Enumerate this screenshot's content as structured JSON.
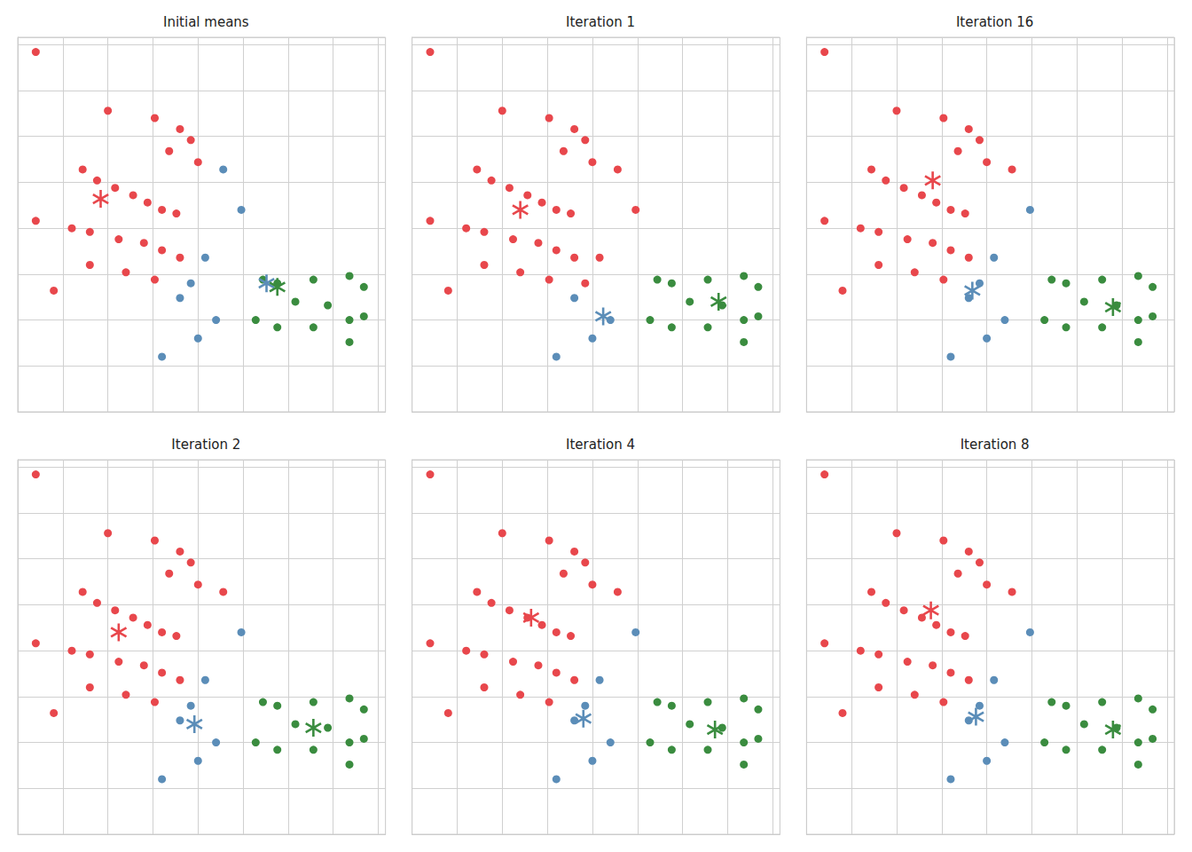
{
  "chart_data": [
    {
      "type": "scatter",
      "title": "Initial means",
      "xlim": [
        0.0,
        10.2
      ],
      "ylim": [
        0.0,
        10.2
      ],
      "xticks": [
        0,
        1.25,
        2.5,
        3.75,
        5,
        6.25,
        7.5,
        8.75,
        10
      ],
      "yticks": [
        0,
        1.25,
        2.5,
        3.75,
        5,
        6.25,
        7.5,
        8.75,
        10
      ],
      "grid": true,
      "tick_labels": false,
      "series": [
        {
          "color": "#E8474C",
          "marker": "circle",
          "x": [
            0.5,
            2.5,
            3.8,
            4.5,
            4.8,
            4.2,
            5.0,
            1.8,
            2.2,
            2.7,
            3.2,
            3.6,
            4.0,
            4.4,
            0.5,
            1.5,
            2.0,
            2.8,
            3.5,
            4.0,
            4.5,
            2.0,
            3.0,
            3.8,
            1.0
          ],
          "values": [
            9.8,
            8.2,
            8.0,
            7.7,
            7.4,
            7.1,
            6.8,
            6.6,
            6.3,
            6.1,
            5.9,
            5.7,
            5.5,
            5.4,
            5.2,
            5.0,
            4.9,
            4.7,
            4.6,
            4.4,
            4.2,
            4.0,
            3.8,
            3.6,
            3.3
          ]
        },
        {
          "color": "#5B8DB8",
          "marker": "circle",
          "x": [
            5.7,
            6.2,
            5.2,
            4.8,
            4.5,
            5.5,
            5.0,
            4.0
          ],
          "values": [
            6.6,
            5.5,
            4.2,
            3.5,
            3.1,
            2.5,
            2.0,
            1.5
          ]
        },
        {
          "color": "#3A8C3F",
          "marker": "circle",
          "x": [
            6.8,
            7.2,
            8.2,
            9.2,
            9.6,
            7.7,
            8.6,
            9.2,
            6.6,
            7.2,
            8.2,
            9.6,
            9.2
          ],
          "values": [
            3.6,
            3.5,
            3.6,
            3.7,
            3.4,
            3.0,
            2.9,
            2.5,
            2.5,
            2.3,
            2.3,
            2.6,
            1.9
          ]
        },
        {
          "color": "#E8474C",
          "marker": "asterisk",
          "x": [
            2.3
          ],
          "values": [
            5.8
          ]
        },
        {
          "color": "#5B8DB8",
          "marker": "asterisk",
          "x": [
            6.9
          ],
          "values": [
            3.5
          ]
        },
        {
          "color": "#3A8C3F",
          "marker": "asterisk",
          "x": [
            7.2
          ],
          "values": [
            3.4
          ]
        }
      ]
    },
    {
      "type": "scatter",
      "title": "Iteration 1",
      "xlim": [
        0.0,
        10.2
      ],
      "ylim": [
        0.0,
        10.2
      ],
      "xticks": [
        0,
        1.25,
        2.5,
        3.75,
        5,
        6.25,
        7.5,
        8.75,
        10
      ],
      "yticks": [
        0,
        1.25,
        2.5,
        3.75,
        5,
        6.25,
        7.5,
        8.75,
        10
      ],
      "grid": true,
      "tick_labels": false,
      "series": [
        {
          "color": "#E8474C",
          "marker": "circle",
          "x": [
            0.5,
            2.5,
            3.8,
            4.5,
            4.8,
            4.2,
            5.0,
            1.8,
            2.2,
            2.7,
            3.2,
            3.6,
            4.0,
            4.4,
            0.5,
            1.5,
            2.0,
            2.8,
            3.5,
            4.0,
            4.5,
            2.0,
            3.0,
            3.8,
            1.0,
            5.7,
            6.2,
            5.2,
            4.8
          ],
          "values": [
            9.8,
            8.2,
            8.0,
            7.7,
            7.4,
            7.1,
            6.8,
            6.6,
            6.3,
            6.1,
            5.9,
            5.7,
            5.5,
            5.4,
            5.2,
            5.0,
            4.9,
            4.7,
            4.6,
            4.4,
            4.2,
            4.0,
            3.8,
            3.6,
            3.3,
            6.6,
            5.5,
            4.2,
            3.5
          ]
        },
        {
          "color": "#5B8DB8",
          "marker": "circle",
          "x": [
            4.5,
            5.5,
            5.0,
            4.0
          ],
          "values": [
            3.1,
            2.5,
            2.0,
            1.5
          ]
        },
        {
          "color": "#3A8C3F",
          "marker": "circle",
          "x": [
            6.8,
            7.2,
            8.2,
            9.2,
            9.6,
            7.7,
            8.6,
            9.2,
            6.6,
            7.2,
            8.2,
            9.6,
            9.2
          ],
          "values": [
            3.6,
            3.5,
            3.6,
            3.7,
            3.4,
            3.0,
            2.9,
            2.5,
            2.5,
            2.3,
            2.3,
            2.6,
            1.9
          ]
        },
        {
          "color": "#E8474C",
          "marker": "asterisk",
          "x": [
            3.0
          ],
          "values": [
            5.5
          ]
        },
        {
          "color": "#5B8DB8",
          "marker": "asterisk",
          "x": [
            5.3
          ],
          "values": [
            2.6
          ]
        },
        {
          "color": "#3A8C3F",
          "marker": "asterisk",
          "x": [
            8.5
          ],
          "values": [
            3.0
          ]
        }
      ]
    },
    {
      "type": "scatter",
      "title": "Iteration 16",
      "xlim": [
        0.0,
        10.2
      ],
      "ylim": [
        0.0,
        10.2
      ],
      "xticks": [
        0,
        1.25,
        2.5,
        3.75,
        5,
        6.25,
        7.5,
        8.75,
        10
      ],
      "yticks": [
        0,
        1.25,
        2.5,
        3.75,
        5,
        6.25,
        7.5,
        8.75,
        10
      ],
      "grid": true,
      "tick_labels": false,
      "series": [
        {
          "color": "#E8474C",
          "marker": "circle",
          "x": [
            0.5,
            2.5,
            3.8,
            4.5,
            4.8,
            4.2,
            5.0,
            1.8,
            2.2,
            2.7,
            3.2,
            3.6,
            4.0,
            4.4,
            0.5,
            1.5,
            2.0,
            2.8,
            3.5,
            4.0,
            4.5,
            2.0,
            3.0,
            3.8,
            1.0,
            5.7
          ],
          "values": [
            9.8,
            8.2,
            8.0,
            7.7,
            7.4,
            7.1,
            6.8,
            6.6,
            6.3,
            6.1,
            5.9,
            5.7,
            5.5,
            5.4,
            5.2,
            5.0,
            4.9,
            4.7,
            4.6,
            4.4,
            4.2,
            4.0,
            3.8,
            3.6,
            3.3,
            6.6
          ]
        },
        {
          "color": "#5B8DB8",
          "marker": "circle",
          "x": [
            6.2,
            5.2,
            4.8,
            4.5,
            5.5,
            5.0,
            4.0
          ],
          "values": [
            5.5,
            4.2,
            3.5,
            3.1,
            2.5,
            2.0,
            1.5
          ]
        },
        {
          "color": "#3A8C3F",
          "marker": "circle",
          "x": [
            6.8,
            7.2,
            8.2,
            9.2,
            9.6,
            7.7,
            8.6,
            9.2,
            6.6,
            7.2,
            8.2,
            9.6,
            9.2
          ],
          "values": [
            3.6,
            3.5,
            3.6,
            3.7,
            3.4,
            3.0,
            2.9,
            2.5,
            2.5,
            2.3,
            2.3,
            2.6,
            1.9
          ]
        },
        {
          "color": "#E8474C",
          "marker": "asterisk",
          "x": [
            3.5
          ],
          "values": [
            6.3
          ]
        },
        {
          "color": "#5B8DB8",
          "marker": "asterisk",
          "x": [
            4.6
          ],
          "values": [
            3.3
          ]
        },
        {
          "color": "#3A8C3F",
          "marker": "asterisk",
          "x": [
            8.5
          ],
          "values": [
            2.85
          ]
        }
      ]
    },
    {
      "type": "scatter",
      "title": "Iteration 2",
      "xlim": [
        0.0,
        10.2
      ],
      "ylim": [
        0.0,
        10.2
      ],
      "xticks": [
        0,
        1.25,
        2.5,
        3.75,
        5,
        6.25,
        7.5,
        8.75,
        10
      ],
      "yticks": [
        0,
        1.25,
        2.5,
        3.75,
        5,
        6.25,
        7.5,
        8.75,
        10
      ],
      "grid": true,
      "tick_labels": false,
      "series": [
        {
          "color": "#E8474C",
          "marker": "circle",
          "x": [
            0.5,
            2.5,
            3.8,
            4.5,
            4.8,
            4.2,
            5.0,
            1.8,
            2.2,
            2.7,
            3.2,
            3.6,
            4.0,
            4.4,
            0.5,
            1.5,
            2.0,
            2.8,
            3.5,
            4.0,
            4.5,
            2.0,
            3.0,
            3.8,
            1.0,
            5.7
          ],
          "values": [
            9.8,
            8.2,
            8.0,
            7.7,
            7.4,
            7.1,
            6.8,
            6.6,
            6.3,
            6.1,
            5.9,
            5.7,
            5.5,
            5.4,
            5.2,
            5.0,
            4.9,
            4.7,
            4.6,
            4.4,
            4.2,
            4.0,
            3.8,
            3.6,
            3.3,
            6.6
          ]
        },
        {
          "color": "#5B8DB8",
          "marker": "circle",
          "x": [
            6.2,
            5.2,
            4.8,
            4.5,
            5.5,
            5.0,
            4.0
          ],
          "values": [
            5.5,
            4.2,
            3.5,
            3.1,
            2.5,
            2.0,
            1.5
          ]
        },
        {
          "color": "#3A8C3F",
          "marker": "circle",
          "x": [
            6.8,
            7.2,
            8.2,
            9.2,
            9.6,
            7.7,
            8.6,
            9.2,
            6.6,
            7.2,
            8.2,
            9.6,
            9.2
          ],
          "values": [
            3.6,
            3.5,
            3.6,
            3.7,
            3.4,
            3.0,
            2.9,
            2.5,
            2.5,
            2.3,
            2.3,
            2.6,
            1.9
          ]
        },
        {
          "color": "#E8474C",
          "marker": "asterisk",
          "x": [
            2.8
          ],
          "values": [
            5.5
          ]
        },
        {
          "color": "#5B8DB8",
          "marker": "asterisk",
          "x": [
            4.9
          ],
          "values": [
            3.0
          ]
        },
        {
          "color": "#3A8C3F",
          "marker": "asterisk",
          "x": [
            8.2
          ],
          "values": [
            2.9
          ]
        }
      ]
    },
    {
      "type": "scatter",
      "title": "Iteration 4",
      "xlim": [
        0.0,
        10.2
      ],
      "ylim": [
        0.0,
        10.2
      ],
      "xticks": [
        0,
        1.25,
        2.5,
        3.75,
        5,
        6.25,
        7.5,
        8.75,
        10
      ],
      "yticks": [
        0,
        1.25,
        2.5,
        3.75,
        5,
        6.25,
        7.5,
        8.75,
        10
      ],
      "grid": true,
      "tick_labels": false,
      "series": [
        {
          "color": "#E8474C",
          "marker": "circle",
          "x": [
            0.5,
            2.5,
            3.8,
            4.5,
            4.8,
            4.2,
            5.0,
            1.8,
            2.2,
            2.7,
            3.2,
            3.6,
            4.0,
            4.4,
            0.5,
            1.5,
            2.0,
            2.8,
            3.5,
            4.0,
            4.5,
            2.0,
            3.0,
            3.8,
            1.0,
            5.7
          ],
          "values": [
            9.8,
            8.2,
            8.0,
            7.7,
            7.4,
            7.1,
            6.8,
            6.6,
            6.3,
            6.1,
            5.9,
            5.7,
            5.5,
            5.4,
            5.2,
            5.0,
            4.9,
            4.7,
            4.6,
            4.4,
            4.2,
            4.0,
            3.8,
            3.6,
            3.3,
            6.6
          ]
        },
        {
          "color": "#5B8DB8",
          "marker": "circle",
          "x": [
            6.2,
            5.2,
            4.8,
            4.5,
            5.5,
            5.0,
            4.0
          ],
          "values": [
            5.5,
            4.2,
            3.5,
            3.1,
            2.5,
            2.0,
            1.5
          ]
        },
        {
          "color": "#3A8C3F",
          "marker": "circle",
          "x": [
            6.8,
            7.2,
            8.2,
            9.2,
            9.6,
            7.7,
            8.6,
            9.2,
            6.6,
            7.2,
            8.2,
            9.6,
            9.2
          ],
          "values": [
            3.6,
            3.5,
            3.6,
            3.7,
            3.4,
            3.0,
            2.9,
            2.5,
            2.5,
            2.3,
            2.3,
            2.6,
            1.9
          ]
        },
        {
          "color": "#E8474C",
          "marker": "asterisk",
          "x": [
            3.3
          ],
          "values": [
            5.9
          ]
        },
        {
          "color": "#5B8DB8",
          "marker": "asterisk",
          "x": [
            4.75
          ],
          "values": [
            3.15
          ]
        },
        {
          "color": "#3A8C3F",
          "marker": "asterisk",
          "x": [
            8.4
          ],
          "values": [
            2.85
          ]
        }
      ]
    },
    {
      "type": "scatter",
      "title": "Iteration 8",
      "xlim": [
        0.0,
        10.2
      ],
      "ylim": [
        0.0,
        10.2
      ],
      "xticks": [
        0,
        1.25,
        2.5,
        3.75,
        5,
        6.25,
        7.5,
        8.75,
        10
      ],
      "yticks": [
        0,
        1.25,
        2.5,
        3.75,
        5,
        6.25,
        7.5,
        8.75,
        10
      ],
      "grid": true,
      "tick_labels": false,
      "series": [
        {
          "color": "#E8474C",
          "marker": "circle",
          "x": [
            0.5,
            2.5,
            3.8,
            4.5,
            4.8,
            4.2,
            5.0,
            1.8,
            2.2,
            2.7,
            3.2,
            3.6,
            4.0,
            4.4,
            0.5,
            1.5,
            2.0,
            2.8,
            3.5,
            4.0,
            4.5,
            2.0,
            3.0,
            3.8,
            1.0,
            5.7
          ],
          "values": [
            9.8,
            8.2,
            8.0,
            7.7,
            7.4,
            7.1,
            6.8,
            6.6,
            6.3,
            6.1,
            5.9,
            5.7,
            5.5,
            5.4,
            5.2,
            5.0,
            4.9,
            4.7,
            4.6,
            4.4,
            4.2,
            4.0,
            3.8,
            3.6,
            3.3,
            6.6
          ]
        },
        {
          "color": "#5B8DB8",
          "marker": "circle",
          "x": [
            6.2,
            5.2,
            4.8,
            4.5,
            5.5,
            5.0,
            4.0
          ],
          "values": [
            5.5,
            4.2,
            3.5,
            3.1,
            2.5,
            2.0,
            1.5
          ]
        },
        {
          "color": "#3A8C3F",
          "marker": "circle",
          "x": [
            6.8,
            7.2,
            8.2,
            9.2,
            9.6,
            7.7,
            8.6,
            9.2,
            6.6,
            7.2,
            8.2,
            9.6,
            9.2
          ],
          "values": [
            3.6,
            3.5,
            3.6,
            3.7,
            3.4,
            3.0,
            2.9,
            2.5,
            2.5,
            2.3,
            2.3,
            2.6,
            1.9
          ]
        },
        {
          "color": "#E8474C",
          "marker": "asterisk",
          "x": [
            3.45
          ],
          "values": [
            6.1
          ]
        },
        {
          "color": "#5B8DB8",
          "marker": "asterisk",
          "x": [
            4.7
          ],
          "values": [
            3.2
          ]
        },
        {
          "color": "#3A8C3F",
          "marker": "asterisk",
          "x": [
            8.5
          ],
          "values": [
            2.85
          ]
        }
      ]
    }
  ]
}
